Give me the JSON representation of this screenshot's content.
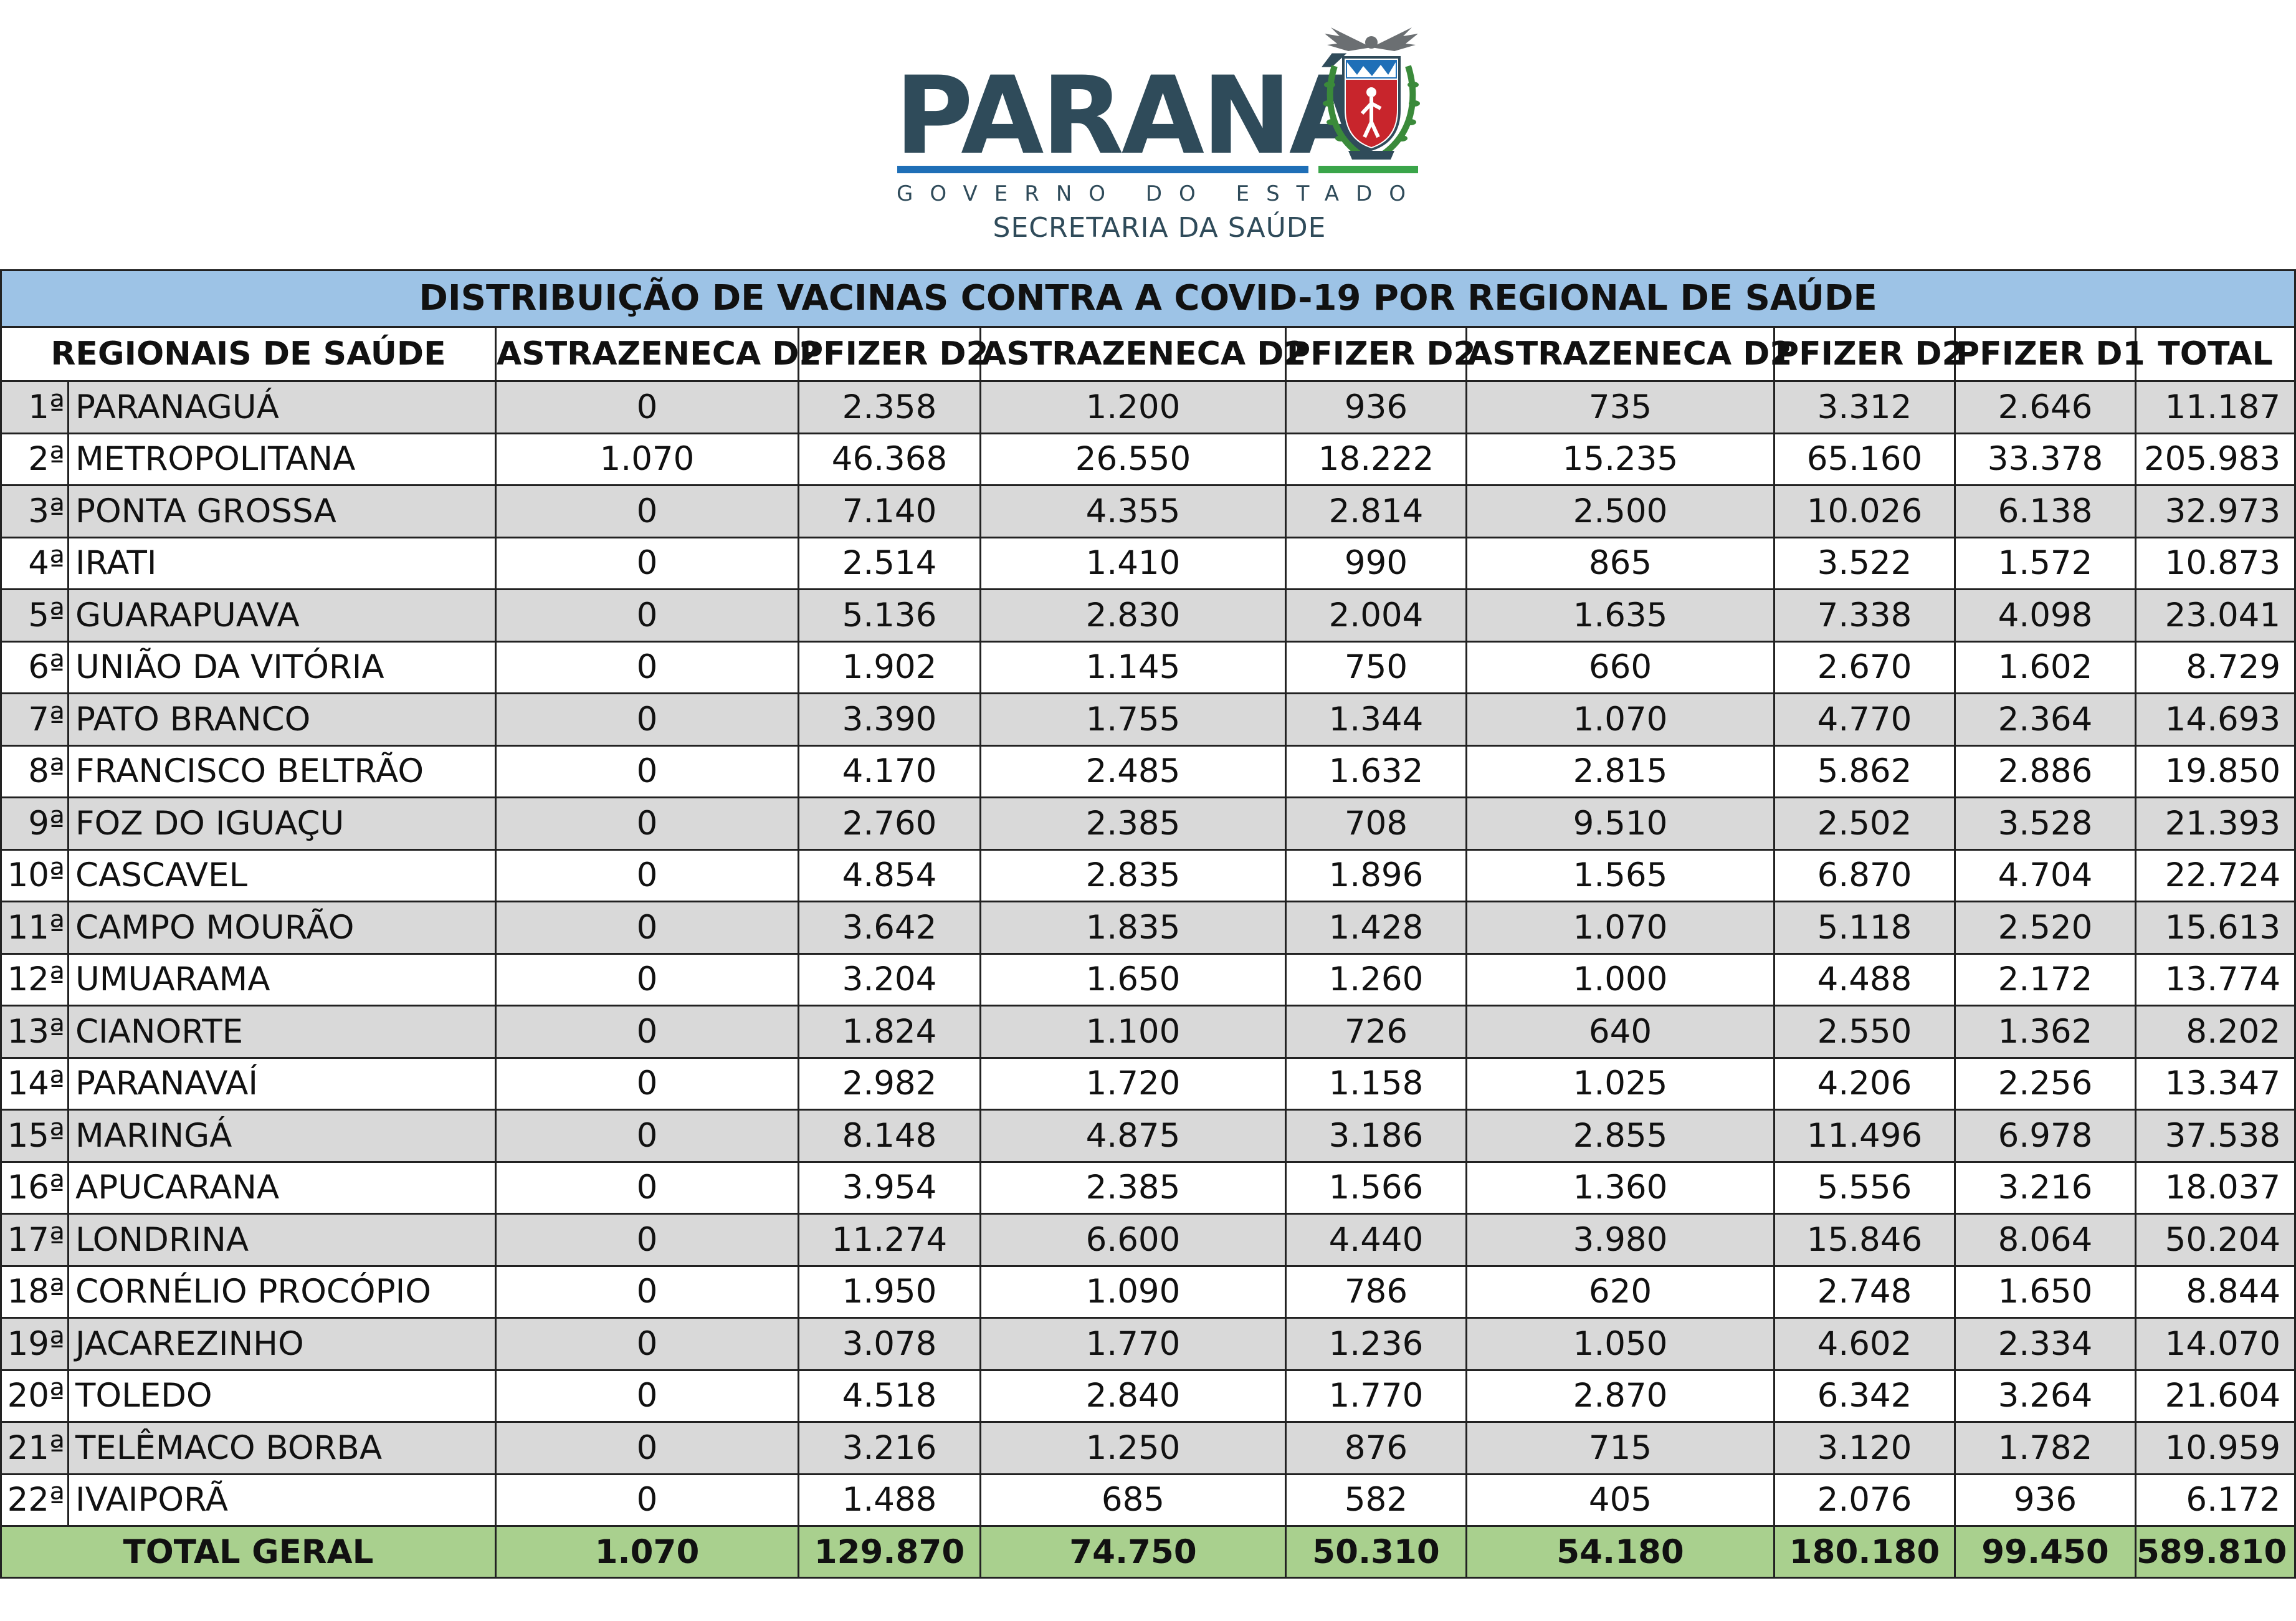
{
  "header": {
    "state_name": "PARANÁ",
    "government": "GOVERNO DO ESTADO",
    "secretariat": "SECRETARIA DA SAÚDE"
  },
  "table": {
    "title": "DISTRIBUIÇÃO DE VACINAS CONTRA A COVID-19 POR REGIONAL DE SAÚDE",
    "columns": [
      "REGIONAIS DE SAÚDE",
      "ASTRAZENECA D2",
      "PFIZER D2",
      "ASTRAZENECA D2",
      "PFIZER D2",
      "ASTRAZENECA D2",
      "PFIZER D2",
      "PFIZER D1",
      "TOTAL"
    ],
    "rows": [
      {
        "rank": "1ª",
        "name": "PARANAGUÁ",
        "values": [
          "0",
          "2.358",
          "1.200",
          "936",
          "735",
          "3.312",
          "2.646"
        ],
        "total": "11.187"
      },
      {
        "rank": "2ª",
        "name": "METROPOLITANA",
        "values": [
          "1.070",
          "46.368",
          "26.550",
          "18.222",
          "15.235",
          "65.160",
          "33.378"
        ],
        "total": "205.983"
      },
      {
        "rank": "3ª",
        "name": "PONTA GROSSA",
        "values": [
          "0",
          "7.140",
          "4.355",
          "2.814",
          "2.500",
          "10.026",
          "6.138"
        ],
        "total": "32.973"
      },
      {
        "rank": "4ª",
        "name": "IRATI",
        "values": [
          "0",
          "2.514",
          "1.410",
          "990",
          "865",
          "3.522",
          "1.572"
        ],
        "total": "10.873"
      },
      {
        "rank": "5ª",
        "name": "GUARAPUAVA",
        "values": [
          "0",
          "5.136",
          "2.830",
          "2.004",
          "1.635",
          "7.338",
          "4.098"
        ],
        "total": "23.041"
      },
      {
        "rank": "6ª",
        "name": "UNIÃO DA VITÓRIA",
        "values": [
          "0",
          "1.902",
          "1.145",
          "750",
          "660",
          "2.670",
          "1.602"
        ],
        "total": "8.729"
      },
      {
        "rank": "7ª",
        "name": "PATO BRANCO",
        "values": [
          "0",
          "3.390",
          "1.755",
          "1.344",
          "1.070",
          "4.770",
          "2.364"
        ],
        "total": "14.693"
      },
      {
        "rank": "8ª",
        "name": "FRANCISCO BELTRÃO",
        "values": [
          "0",
          "4.170",
          "2.485",
          "1.632",
          "2.815",
          "5.862",
          "2.886"
        ],
        "total": "19.850"
      },
      {
        "rank": "9ª",
        "name": "FOZ DO IGUAÇU",
        "values": [
          "0",
          "2.760",
          "2.385",
          "708",
          "9.510",
          "2.502",
          "3.528"
        ],
        "total": "21.393"
      },
      {
        "rank": "10ª",
        "name": "CASCAVEL",
        "values": [
          "0",
          "4.854",
          "2.835",
          "1.896",
          "1.565",
          "6.870",
          "4.704"
        ],
        "total": "22.724"
      },
      {
        "rank": "11ª",
        "name": "CAMPO MOURÃO",
        "values": [
          "0",
          "3.642",
          "1.835",
          "1.428",
          "1.070",
          "5.118",
          "2.520"
        ],
        "total": "15.613"
      },
      {
        "rank": "12ª",
        "name": "UMUARAMA",
        "values": [
          "0",
          "3.204",
          "1.650",
          "1.260",
          "1.000",
          "4.488",
          "2.172"
        ],
        "total": "13.774"
      },
      {
        "rank": "13ª",
        "name": "CIANORTE",
        "values": [
          "0",
          "1.824",
          "1.100",
          "726",
          "640",
          "2.550",
          "1.362"
        ],
        "total": "8.202"
      },
      {
        "rank": "14ª",
        "name": "PARANAVAÍ",
        "values": [
          "0",
          "2.982",
          "1.720",
          "1.158",
          "1.025",
          "4.206",
          "2.256"
        ],
        "total": "13.347"
      },
      {
        "rank": "15ª",
        "name": "MARINGÁ",
        "values": [
          "0",
          "8.148",
          "4.875",
          "3.186",
          "2.855",
          "11.496",
          "6.978"
        ],
        "total": "37.538"
      },
      {
        "rank": "16ª",
        "name": "APUCARANA",
        "values": [
          "0",
          "3.954",
          "2.385",
          "1.566",
          "1.360",
          "5.556",
          "3.216"
        ],
        "total": "18.037"
      },
      {
        "rank": "17ª",
        "name": "LONDRINA",
        "values": [
          "0",
          "11.274",
          "6.600",
          "4.440",
          "3.980",
          "15.846",
          "8.064"
        ],
        "total": "50.204"
      },
      {
        "rank": "18ª",
        "name": "CORNÉLIO PROCÓPIO",
        "values": [
          "0",
          "1.950",
          "1.090",
          "786",
          "620",
          "2.748",
          "1.650"
        ],
        "total": "8.844"
      },
      {
        "rank": "19ª",
        "name": "JACAREZINHO",
        "values": [
          "0",
          "3.078",
          "1.770",
          "1.236",
          "1.050",
          "4.602",
          "2.334"
        ],
        "total": "14.070"
      },
      {
        "rank": "20ª",
        "name": "TOLEDO",
        "values": [
          "0",
          "4.518",
          "2.840",
          "1.770",
          "2.870",
          "6.342",
          "3.264"
        ],
        "total": "21.604"
      },
      {
        "rank": "21ª",
        "name": "TELÊMACO BORBA",
        "values": [
          "0",
          "3.216",
          "1.250",
          "876",
          "715",
          "3.120",
          "1.782"
        ],
        "total": "10.959"
      },
      {
        "rank": "22ª",
        "name": "IVAIPORÃ",
        "values": [
          "0",
          "1.488",
          "685",
          "582",
          "405",
          "2.076",
          "936"
        ],
        "total": "6.172"
      }
    ],
    "footer": {
      "label": "TOTAL GERAL",
      "values": [
        "1.070",
        "129.870",
        "74.750",
        "50.310",
        "54.180",
        "180.180",
        "99.450"
      ],
      "total": "589.810"
    }
  },
  "colors": {
    "title_band": "#9dc3e6",
    "shaded_row": "#d9d9d9",
    "total_row": "#a9d08e",
    "logo_text": "#2f4b5a",
    "logo_blue": "#1f6fb7",
    "logo_green": "#3aa54a",
    "crest_red": "#c8252c"
  },
  "icons": {
    "crest": "parana-coat-of-arms-icon"
  }
}
